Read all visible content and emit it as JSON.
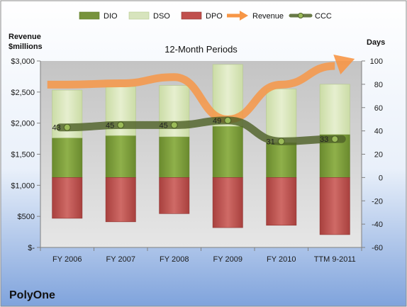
{
  "chart_data": {
    "type": "bar",
    "title": "12-Month Periods",
    "company": "PolyOne",
    "left_axis": {
      "label_line1": "Revenue",
      "label_line2": "$millions",
      "ylim": [
        0,
        3000
      ],
      "ticks": [
        0,
        500,
        1000,
        1500,
        2000,
        2500,
        3000
      ],
      "tick_labels": [
        "$-",
        "$500",
        "$1,000",
        "$1,500",
        "$2,000",
        "$2,500",
        "$3,000"
      ]
    },
    "right_axis": {
      "label": "Days",
      "ylim": [
        -60,
        100
      ],
      "ticks": [
        -60,
        -40,
        -20,
        0,
        20,
        40,
        60,
        80,
        100
      ],
      "tick_labels": [
        "-60",
        "-40",
        "-20",
        "0",
        "20",
        "40",
        "60",
        "80",
        "100"
      ]
    },
    "categories": [
      "FY 2006",
      "FY 2007",
      "FY 2008",
      "FY 2009",
      "FY 2010",
      "TTM 9-2011"
    ],
    "series": [
      {
        "name": "DIO",
        "axis": "right",
        "type": "stacked_bar",
        "color": "#77933c",
        "values": [
          34,
          36,
          35,
          44,
          30,
          37
        ]
      },
      {
        "name": "DSO",
        "axis": "right",
        "type": "stacked_bar",
        "color": "#d7e4bd",
        "values": [
          41,
          42,
          44,
          53,
          46,
          43
        ]
      },
      {
        "name": "DPO",
        "axis": "right",
        "type": "stacked_bar",
        "color": "#c0504d",
        "values": [
          -35,
          -38,
          -31,
          -43,
          -41,
          -49
        ]
      },
      {
        "name": "Revenue",
        "axis": "left",
        "type": "line",
        "color": "#f79646",
        "values": [
          2620,
          2640,
          2740,
          2060,
          2620,
          2920
        ]
      },
      {
        "name": "CCC",
        "axis": "right",
        "type": "line",
        "color": "#4f6228",
        "values": [
          43,
          45,
          45,
          49,
          31,
          33
        ]
      }
    ],
    "data_labels": [
      "43",
      "45",
      "45",
      "49",
      "31",
      "33"
    ],
    "legend": [
      "DIO",
      "DSO",
      "DPO",
      "Revenue",
      "CCC"
    ],
    "legend_position": "top",
    "grid": false
  }
}
